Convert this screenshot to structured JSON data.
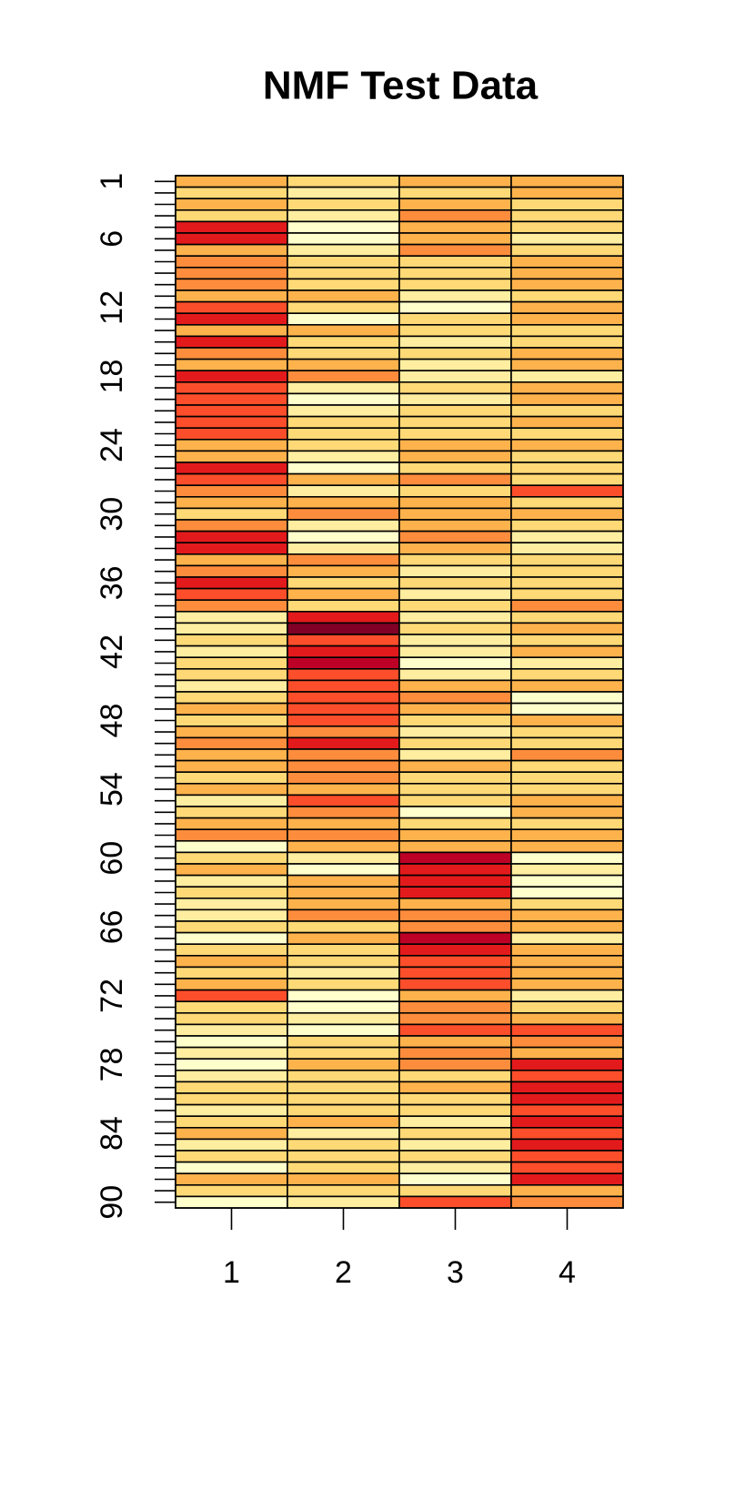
{
  "chart_data": {
    "type": "heatmap",
    "title": "NMF Test Data",
    "categories": [
      "1",
      "2",
      "3",
      "4"
    ],
    "rows": [
      "1",
      null,
      null,
      null,
      null,
      "6",
      null,
      null,
      null,
      null,
      null,
      "12",
      null,
      null,
      null,
      null,
      null,
      "18",
      null,
      null,
      null,
      null,
      null,
      "24",
      null,
      null,
      null,
      null,
      null,
      "30",
      null,
      null,
      null,
      null,
      null,
      "36",
      null,
      null,
      null,
      null,
      null,
      "42",
      null,
      null,
      null,
      null,
      null,
      "48",
      null,
      null,
      null,
      null,
      null,
      "54",
      null,
      null,
      null,
      null,
      null,
      "60",
      null,
      null,
      null,
      null,
      null,
      "66",
      null,
      null,
      null,
      null,
      null,
      "72",
      null,
      null,
      null,
      null,
      null,
      "78",
      null,
      null,
      null,
      null,
      null,
      "84",
      null,
      null,
      null,
      null,
      null,
      "90"
    ],
    "colors": [
      "#FFFFCC",
      "#FFEDA0",
      "#FED976",
      "#FEB24C",
      "#FD8D3C",
      "#FC4E2A",
      "#E31A1C",
      "#BD0026",
      "#800026"
    ],
    "values": [
      [
        3,
        2,
        3,
        2,
        6,
        6,
        3,
        4,
        4,
        4,
        3,
        5,
        6,
        3,
        6,
        4,
        3,
        6,
        5,
        5,
        5,
        5,
        5,
        3,
        3,
        6,
        5,
        4,
        3,
        2,
        4,
        6,
        6,
        3,
        4,
        6,
        5,
        4,
        1,
        1,
        2,
        1,
        2,
        2,
        1,
        2,
        3,
        2,
        3,
        4,
        3,
        3,
        2,
        3,
        1,
        2,
        3,
        4,
        0,
        2,
        3,
        1,
        2,
        1,
        1,
        2,
        0,
        2,
        3,
        2,
        3,
        5,
        2,
        2,
        1,
        0,
        1,
        0,
        1,
        2,
        2,
        1,
        2,
        3,
        1,
        2,
        0,
        3,
        2,
        0
      ],
      [
        2,
        1,
        2,
        1,
        0,
        0,
        1,
        2,
        2,
        2,
        3,
        2,
        0,
        3,
        2,
        2,
        3,
        4,
        1,
        0,
        1,
        2,
        2,
        2,
        1,
        0,
        3,
        1,
        3,
        4,
        1,
        0,
        1,
        4,
        3,
        2,
        3,
        2,
        6,
        8,
        5,
        6,
        7,
        5,
        5,
        5,
        5,
        5,
        4,
        6,
        4,
        4,
        4,
        3,
        5,
        4,
        3,
        4,
        3,
        1,
        0,
        3,
        3,
        3,
        4,
        2,
        3,
        2,
        2,
        1,
        2,
        0,
        0,
        1,
        0,
        2,
        2,
        3,
        2,
        2,
        2,
        2,
        3,
        1,
        2,
        2,
        2,
        3,
        2,
        1
      ],
      [
        3,
        2,
        3,
        4,
        3,
        3,
        4,
        2,
        2,
        2,
        1,
        0,
        2,
        2,
        1,
        2,
        1,
        1,
        2,
        1,
        2,
        2,
        2,
        3,
        3,
        2,
        4,
        2,
        3,
        3,
        3,
        4,
        3,
        2,
        1,
        2,
        1,
        2,
        1,
        2,
        1,
        1,
        0,
        1,
        3,
        4,
        3,
        2,
        1,
        2,
        1,
        3,
        2,
        2,
        2,
        0,
        2,
        3,
        3,
        7,
        6,
        6,
        6,
        3,
        4,
        4,
        7,
        6,
        5,
        5,
        5,
        3,
        4,
        4,
        5,
        3,
        4,
        4,
        2,
        3,
        2,
        2,
        1,
        2,
        1,
        2,
        1,
        0,
        2,
        5
      ],
      [
        3,
        3,
        2,
        2,
        2,
        1,
        2,
        3,
        3,
        3,
        2,
        3,
        3,
        2,
        2,
        3,
        3,
        1,
        3,
        3,
        2,
        3,
        2,
        3,
        2,
        2,
        2,
        5,
        2,
        3,
        2,
        1,
        1,
        2,
        2,
        2,
        2,
        4,
        2,
        3,
        2,
        3,
        1,
        2,
        3,
        0,
        0,
        3,
        2,
        2,
        4,
        2,
        2,
        2,
        3,
        3,
        2,
        3,
        3,
        0,
        1,
        0,
        0,
        2,
        3,
        3,
        1,
        3,
        3,
        3,
        3,
        1,
        2,
        3,
        5,
        4,
        3,
        6,
        5,
        6,
        6,
        5,
        6,
        5,
        6,
        5,
        5,
        6,
        3,
        4
      ]
    ]
  }
}
